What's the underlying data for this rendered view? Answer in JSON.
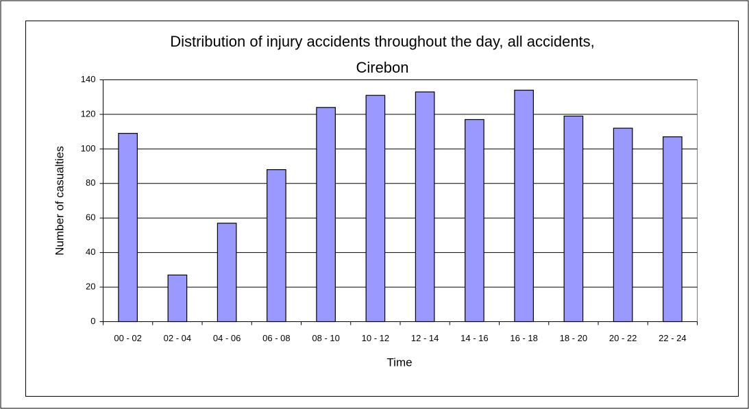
{
  "chart_data": {
    "type": "bar",
    "title": [
      "Distribution of injury accidents throughout the day, all accidents,",
      "Cirebon"
    ],
    "x_label": "Time",
    "y_label": "Number of casualties",
    "categories": [
      "00 - 02",
      "02 - 04",
      "04 - 06",
      "06 - 08",
      "08 - 10",
      "10 - 12",
      "12 - 14",
      "14 - 16",
      "16 - 18",
      "18 - 20",
      "20 - 22",
      "22 - 24"
    ],
    "values": [
      109,
      27,
      57,
      88,
      124,
      131,
      133,
      117,
      134,
      119,
      112,
      107
    ],
    "color": "#9999ff",
    "ylim": [
      0,
      140
    ],
    "yticks": [
      0,
      20,
      40,
      60,
      80,
      100,
      120,
      140
    ],
    "grid": true
  }
}
